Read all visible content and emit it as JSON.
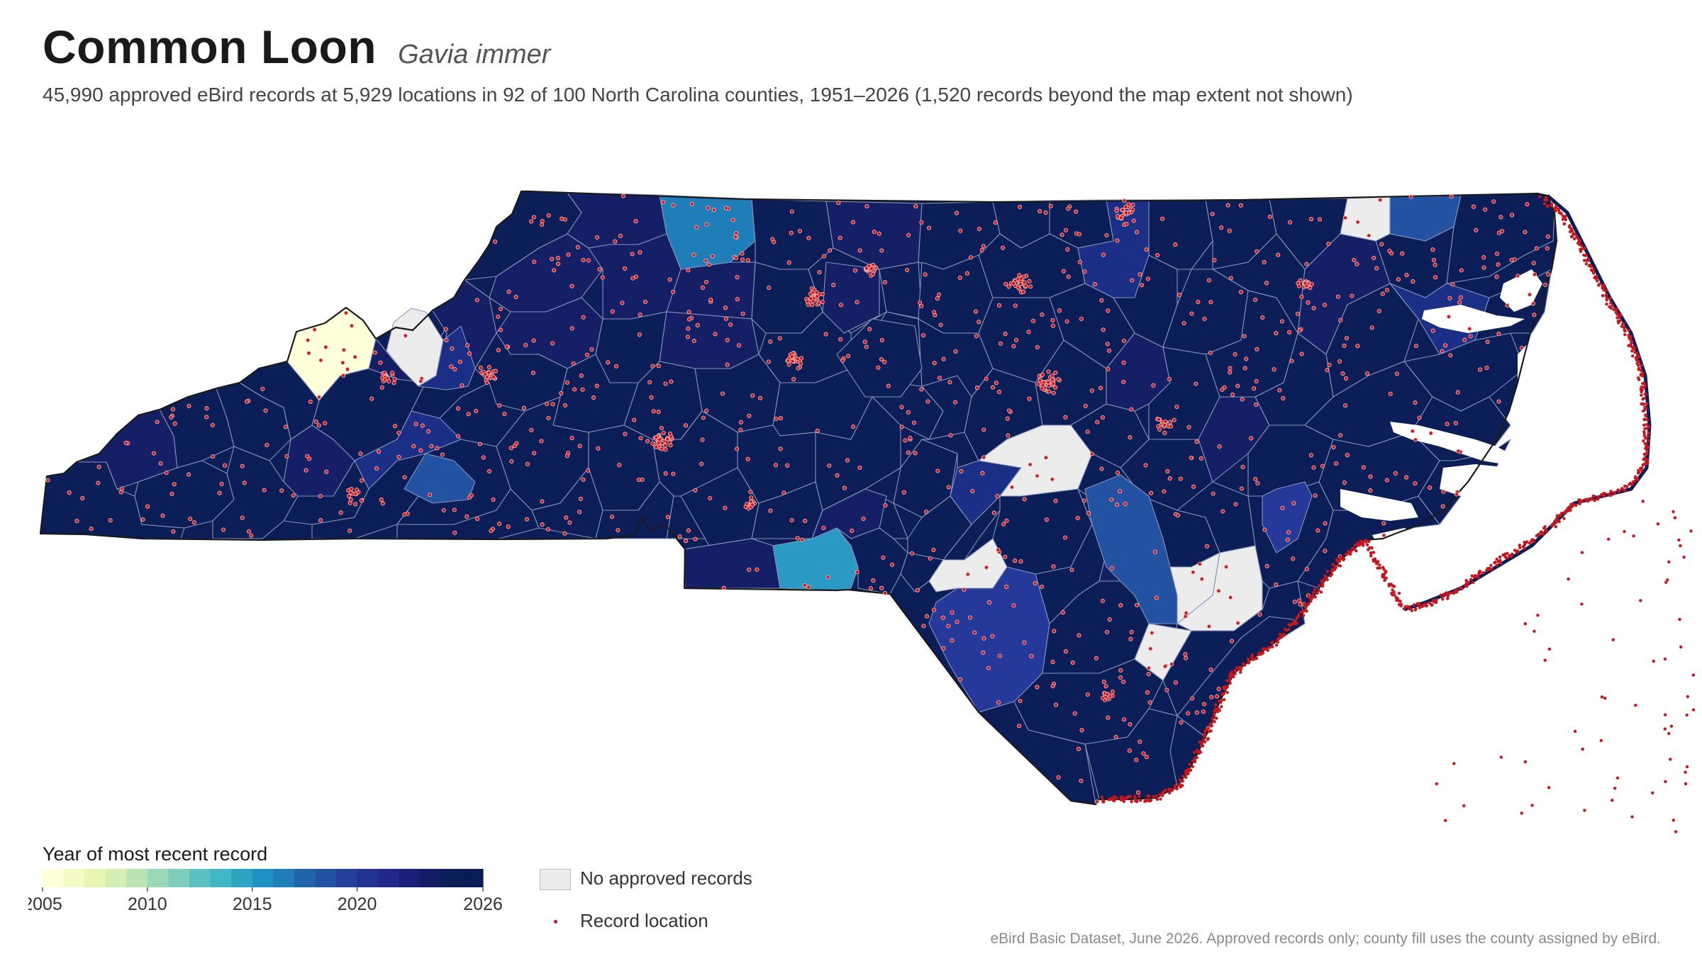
{
  "header": {
    "title": "Common Loon",
    "scientific_name": "Gavia immer",
    "subtitle": "45,990 approved eBird records at 5,929 locations in 92 of 100 North Carolina counties, 1951–2026 (1,520 records beyond the map extent not shown)"
  },
  "legend": {
    "title": "Year of most recent record",
    "colorbar": {
      "min": 2005,
      "max": 2026,
      "ticks": [
        "2005",
        "2010",
        "2015",
        "2020",
        "2026"
      ],
      "colors": [
        "#ffffd9",
        "#f4fbc4",
        "#e7f6b1",
        "#d4eeb3",
        "#bae4b5",
        "#9bd8b8",
        "#7ccdbb",
        "#5dc0c0",
        "#41b6c4",
        "#2ea3c2",
        "#1d91c0",
        "#1f7db8",
        "#2165ac",
        "#2352a3",
        "#253f9a",
        "#243392",
        "#22288a",
        "#1b1f77",
        "#141b66",
        "#0b1d57",
        "#081d58"
      ]
    },
    "no_records_label": "No approved records",
    "no_records_color": "#ececec",
    "record_location_label": "Record location",
    "record_dot_color": "#c8161d"
  },
  "map_colors": {
    "c2026": "#0b1e58",
    "c2025": "#141f66",
    "c2024": "#1b2f86",
    "c2023": "#25399a",
    "c2022": "#2352a3",
    "c2020": "#1f7db8",
    "c2017": "#2a9ac4",
    "c2005": "#ffffd9",
    "none": "#ececec",
    "county_border": "#8a93b8",
    "state_border": "#1a1a1a"
  },
  "source_note": "eBird Basic Dataset, June 2026. Approved records only; county fill uses the county assigned by eBird."
}
